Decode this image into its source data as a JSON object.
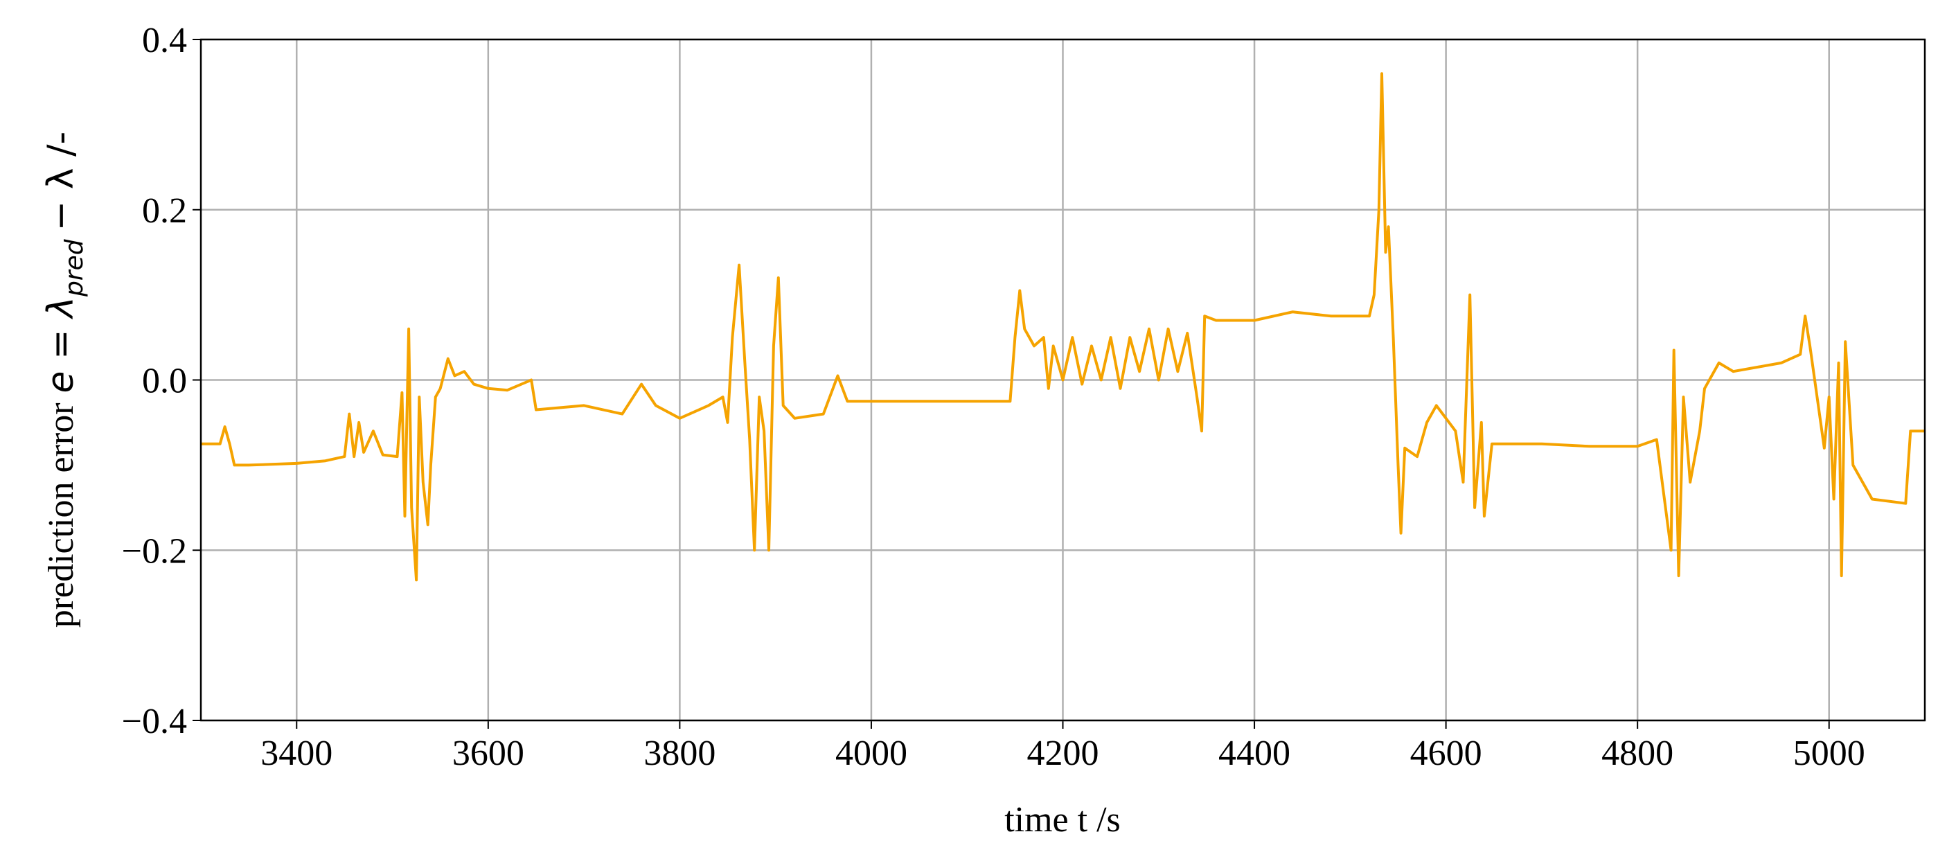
{
  "chart_data": {
    "type": "line",
    "xlabel": "time t /s",
    "ylabel": {
      "text": "prediction error",
      "math": "e = λ",
      "sub": "pred",
      "rest": "− λ /-"
    },
    "xlim": [
      3300,
      5100
    ],
    "xticks": [
      3400,
      3600,
      3800,
      4000,
      4200,
      4400,
      4600,
      4800,
      5000
    ],
    "ylim": [
      -0.4,
      0.4
    ],
    "yticks": [
      {
        "value": -0.4,
        "label": "−0.4"
      },
      {
        "value": -0.2,
        "label": "−0.2"
      },
      {
        "value": 0,
        "label": "0.0"
      },
      0.2,
      0.4
    ],
    "grid": true,
    "x": [
      3300,
      3320,
      3325,
      3330,
      3335,
      3350,
      3400,
      3430,
      3450,
      3455,
      3460,
      3465,
      3470,
      3480,
      3490,
      3505,
      3510,
      3513,
      3517,
      3520,
      3525,
      3528,
      3532,
      3537,
      3540,
      3545,
      3550,
      3558,
      3565,
      3575,
      3585,
      3600,
      3620,
      3645,
      3650,
      3700,
      3740,
      3760,
      3775,
      3800,
      3830,
      3845,
      3850,
      3855,
      3862,
      3868,
      3873,
      3878,
      3883,
      3888,
      3893,
      3898,
      3903,
      3908,
      3920,
      3950,
      3965,
      3975,
      4000,
      4050,
      4100,
      4145,
      4150,
      4155,
      4160,
      4170,
      4180,
      4185,
      4190,
      4200,
      4210,
      4220,
      4230,
      4240,
      4250,
      4260,
      4270,
      4280,
      4290,
      4300,
      4310,
      4320,
      4330,
      4340,
      4345,
      4348,
      4360,
      4400,
      4440,
      4480,
      4520,
      4525,
      4530,
      4533,
      4537,
      4540,
      4545,
      4550,
      4553,
      4557,
      4570,
      4580,
      4590,
      4600,
      4610,
      4618,
      4625,
      4630,
      4637,
      4640,
      4648,
      4700,
      4750,
      4800,
      4820,
      4835,
      4838,
      4843,
      4848,
      4855,
      4865,
      4870,
      4885,
      4900,
      4950,
      4970,
      4975,
      4980,
      4995,
      5000,
      5005,
      5010,
      5013,
      5017,
      5025,
      5035,
      5045,
      5080,
      5085,
      5100
    ],
    "series": [
      {
        "color": "#f5a300",
        "values": [
          -0.075,
          -0.075,
          -0.055,
          -0.075,
          -0.1,
          -0.1,
          -0.098,
          -0.095,
          -0.09,
          -0.04,
          -0.09,
          -0.05,
          -0.085,
          -0.06,
          -0.088,
          -0.09,
          -0.015,
          -0.16,
          0.06,
          -0.15,
          -0.235,
          -0.02,
          -0.12,
          -0.17,
          -0.1,
          -0.02,
          -0.01,
          0.025,
          0.005,
          0.01,
          -0.005,
          -0.01,
          -0.012,
          0.0,
          -0.035,
          -0.03,
          -0.04,
          -0.005,
          -0.03,
          -0.045,
          -0.03,
          -0.02,
          -0.05,
          0.05,
          0.135,
          0.02,
          -0.07,
          -0.2,
          -0.02,
          -0.06,
          -0.2,
          0.04,
          0.12,
          -0.03,
          -0.045,
          -0.04,
          0.005,
          -0.025,
          -0.025,
          -0.025,
          -0.025,
          -0.025,
          0.05,
          0.105,
          0.06,
          0.04,
          0.05,
          -0.01,
          0.04,
          0.0,
          0.05,
          -0.005,
          0.04,
          0.0,
          0.05,
          -0.01,
          0.05,
          0.01,
          0.06,
          0.0,
          0.06,
          0.01,
          0.055,
          -0.02,
          -0.06,
          0.075,
          0.07,
          0.07,
          0.08,
          0.075,
          0.075,
          0.1,
          0.2,
          0.36,
          0.15,
          0.18,
          0.05,
          -0.1,
          -0.18,
          -0.08,
          -0.09,
          -0.05,
          -0.03,
          -0.045,
          -0.06,
          -0.12,
          0.1,
          -0.15,
          -0.05,
          -0.16,
          -0.075,
          -0.075,
          -0.078,
          -0.078,
          -0.07,
          -0.2,
          0.035,
          -0.23,
          -0.02,
          -0.12,
          -0.06,
          -0.01,
          0.02,
          0.01,
          0.02,
          0.03,
          0.075,
          0.04,
          -0.08,
          -0.02,
          -0.14,
          0.02,
          -0.23,
          0.045,
          -0.1,
          -0.12,
          -0.14,
          -0.145,
          -0.06,
          -0.06
        ]
      }
    ]
  }
}
